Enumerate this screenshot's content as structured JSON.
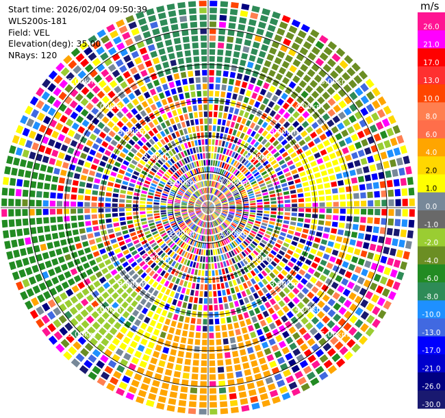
{
  "header": {
    "start_time": "Start time: 2026/02/04 09:50:39",
    "instrument": "WLS200s-181",
    "field": "Field: VEL",
    "elevation": "Elevation(deg): 35.00",
    "nrays": "NRays: 120"
  },
  "colorbar": {
    "unit": "m/s",
    "levels": [
      {
        "label": "26.0",
        "color": "#ff1493"
      },
      {
        "label": "21.0",
        "color": "#ff00ff"
      },
      {
        "label": "17.0",
        "color": "#ff0000"
      },
      {
        "label": "13.0",
        "color": "#ff3030"
      },
      {
        "label": "10.0",
        "color": "#ff4500"
      },
      {
        "label": "8.0",
        "color": "#ff7f50"
      },
      {
        "label": "6.0",
        "color": "#ff6e4a"
      },
      {
        "label": "4.0",
        "color": "#ffa500"
      },
      {
        "label": "2.0",
        "color": "#ffd700"
      },
      {
        "label": "1.0",
        "color": "#ffff00"
      },
      {
        "label": "0.0",
        "color": "#778899"
      },
      {
        "label": "-1.0",
        "color": "#696969"
      },
      {
        "label": "-2.0",
        "color": "#9acd32"
      },
      {
        "label": "-4.0",
        "color": "#6b8e23"
      },
      {
        "label": "-6.0",
        "color": "#228b22"
      },
      {
        "label": "-8.0",
        "color": "#2e8b57"
      },
      {
        "label": "-10.0",
        "color": "#1e90ff"
      },
      {
        "label": "-13.0",
        "color": "#4169e1"
      },
      {
        "label": "-17.0",
        "color": "#0000ff"
      },
      {
        "label": "-21.0",
        "color": "#0000cd"
      },
      {
        "label": "-26.0",
        "color": "#000080"
      },
      {
        "label": "-30.0",
        "color": "#191970"
      }
    ]
  },
  "chart_data": {
    "type": "heatmap",
    "projection": "polar-ppi",
    "field": "VEL",
    "units": "m/s",
    "n_rays": 120,
    "elevation_deg": 35.0,
    "range_labels": [
      "1.00km",
      "2.00km",
      "3.00km",
      "4.00km",
      "5.00km"
    ],
    "range_ring_km": [
      1,
      2,
      3,
      4,
      5
    ],
    "max_range_km": 5.8,
    "label_azimuths_deg": [
      45,
      135,
      225,
      315
    ],
    "regions": [
      {
        "az_deg": [
          240,
          268
        ],
        "range_km": [
          3.5,
          5.8
        ],
        "velocity_ms": -6.0
      },
      {
        "az_deg": [
          268,
          285
        ],
        "range_km": [
          4.5,
          5.8
        ],
        "velocity_ms": -6.0
      },
      {
        "az_deg": [
          215,
          245
        ],
        "range_km": [
          3.0,
          5.0
        ],
        "velocity_ms": -2.0
      },
      {
        "az_deg": [
          210,
          235
        ],
        "range_km": [
          2.7,
          3.8
        ],
        "velocity_ms": 0.0
      },
      {
        "az_deg": [
          200,
          220
        ],
        "range_km": [
          2.6,
          4.8
        ],
        "velocity_ms": 1.0
      },
      {
        "az_deg": [
          160,
          205
        ],
        "range_km": [
          3.2,
          5.8
        ],
        "velocity_ms": 4.0
      },
      {
        "az_deg": [
          20,
          50
        ],
        "range_km": [
          3.8,
          5.8
        ],
        "velocity_ms": -4.0
      },
      {
        "az_deg": [
          340,
          25
        ],
        "range_km": [
          3.8,
          5.8
        ],
        "velocity_ms": -8.0
      },
      {
        "az_deg": [
          60,
          90
        ],
        "range_km": [
          2.7,
          4.0
        ],
        "velocity_ms": 1.0
      }
    ]
  }
}
